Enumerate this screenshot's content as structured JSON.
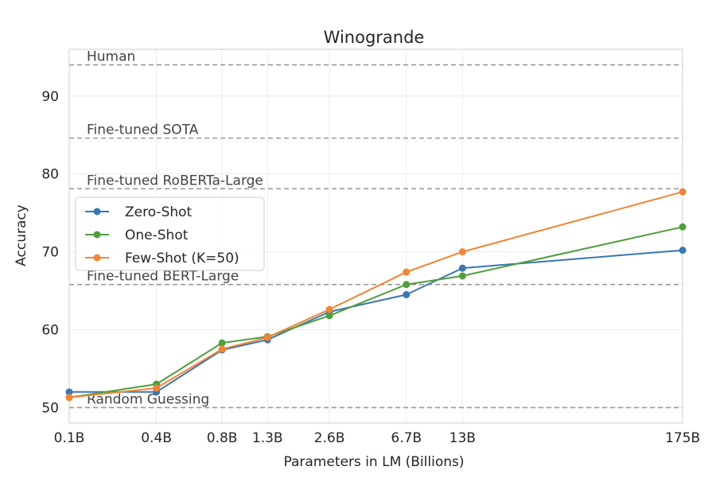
{
  "chart_data": {
    "type": "line",
    "title": "Winogrande",
    "xlabel": "Parameters in LM (Billions)",
    "ylabel": "Accuracy",
    "x_scale": "log",
    "categories": [
      "0.1B",
      "0.4B",
      "0.8B",
      "1.3B",
      "2.6B",
      "6.7B",
      "13B",
      "175B"
    ],
    "x": [
      0.125,
      0.35,
      0.76,
      1.3,
      2.7,
      6.7,
      13,
      175
    ],
    "xlim": [
      0.125,
      175
    ],
    "ylim": [
      48,
      96
    ],
    "yticks": [
      50,
      60,
      70,
      80,
      90
    ],
    "grid": true,
    "legend_position": "center-left",
    "series": [
      {
        "name": "Zero-Shot",
        "color": "#3a76af",
        "values": [
          52.0,
          52.0,
          57.4,
          58.7,
          62.3,
          64.5,
          67.9,
          70.2
        ]
      },
      {
        "name": "One-Shot",
        "color": "#519e3e",
        "values": [
          51.3,
          53.0,
          58.3,
          59.1,
          61.8,
          65.8,
          66.9,
          73.2
        ]
      },
      {
        "name": "Few-Shot (K=50)",
        "color": "#ef8636",
        "values": [
          51.3,
          52.5,
          57.5,
          59.0,
          62.6,
          67.4,
          70.0,
          77.7
        ]
      }
    ],
    "reference_lines": [
      {
        "label": "Human",
        "value": 94.0
      },
      {
        "label": "Fine-tuned SOTA",
        "value": 84.6
      },
      {
        "label": "Fine-tuned RoBERTa-Large",
        "value": 78.1
      },
      {
        "label": "Fine-tuned BERT-Large",
        "value": 65.8
      },
      {
        "label": "Random Guessing",
        "value": 50.0
      }
    ]
  }
}
